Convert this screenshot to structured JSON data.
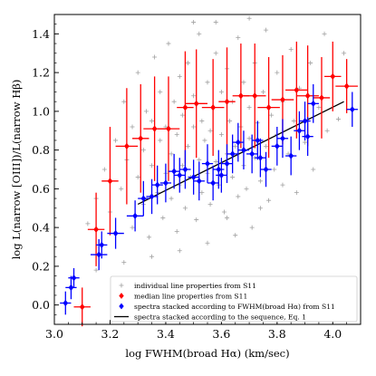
{
  "chart_data": {
    "type": "scatter",
    "xlabel": "log FWHM(broad Hα) (km/sec)",
    "ylabel": "log L(narrow [OIII])/L(narrow Hβ)",
    "xlim": [
      3.0,
      4.1
    ],
    "ylim": [
      -0.1,
      1.5
    ],
    "xticks": [
      "3.0",
      "3.2",
      "3.4",
      "3.6",
      "3.8",
      "4.0"
    ],
    "yticks": [
      "0.0",
      "0.2",
      "0.4",
      "0.6",
      "0.8",
      "1.0",
      "1.2",
      "1.4"
    ],
    "grid": false,
    "legend_position": "bottom-right",
    "series": [
      {
        "name": "individual line properties from S11",
        "marker": "plus",
        "color": "#a0a0a0",
        "description_only": false,
        "points": [
          [
            3.12,
            0.42
          ],
          [
            3.15,
            0.55
          ],
          [
            3.18,
            0.7
          ],
          [
            3.2,
            0.48
          ],
          [
            3.22,
            0.85
          ],
          [
            3.24,
            0.6
          ],
          [
            3.25,
            1.05
          ],
          [
            3.26,
            0.75
          ],
          [
            3.28,
            0.4
          ],
          [
            3.28,
            0.92
          ],
          [
            3.3,
            0.66
          ],
          [
            3.3,
            1.2
          ],
          [
            3.32,
            0.52
          ],
          [
            3.32,
            0.8
          ],
          [
            3.33,
            1.0
          ],
          [
            3.34,
            0.35
          ],
          [
            3.35,
            0.72
          ],
          [
            3.35,
            0.95
          ],
          [
            3.36,
            1.28
          ],
          [
            3.37,
            0.58
          ],
          [
            3.38,
            0.85
          ],
          [
            3.38,
            1.1
          ],
          [
            3.39,
            0.45
          ],
          [
            3.4,
            0.68
          ],
          [
            3.4,
            0.92
          ],
          [
            3.41,
            1.35
          ],
          [
            3.42,
            0.55
          ],
          [
            3.42,
            0.78
          ],
          [
            3.43,
            1.05
          ],
          [
            3.44,
            0.38
          ],
          [
            3.44,
            0.88
          ],
          [
            3.45,
            0.62
          ],
          [
            3.45,
            1.18
          ],
          [
            3.46,
            0.72
          ],
          [
            3.46,
            0.98
          ],
          [
            3.47,
            0.5
          ],
          [
            3.48,
            0.82
          ],
          [
            3.48,
            1.25
          ],
          [
            3.49,
            0.66
          ],
          [
            3.5,
            0.92
          ],
          [
            3.5,
            1.08
          ],
          [
            3.51,
            0.44
          ],
          [
            3.52,
            0.75
          ],
          [
            3.52,
            1.4
          ],
          [
            3.53,
            0.58
          ],
          [
            3.53,
            0.95
          ],
          [
            3.54,
            0.85
          ],
          [
            3.55,
            0.68
          ],
          [
            3.55,
            1.15
          ],
          [
            3.56,
            0.52
          ],
          [
            3.56,
            0.9
          ],
          [
            3.57,
            1.02
          ],
          [
            3.58,
            0.74
          ],
          [
            3.58,
            1.3
          ],
          [
            3.59,
            0.62
          ],
          [
            3.6,
            0.88
          ],
          [
            3.6,
            1.1
          ],
          [
            3.61,
            0.48
          ],
          [
            3.62,
            0.78
          ],
          [
            3.62,
            1.22
          ],
          [
            3.63,
            0.95
          ],
          [
            3.64,
            0.66
          ],
          [
            3.64,
            1.05
          ],
          [
            3.65,
            0.82
          ],
          [
            3.66,
            0.56
          ],
          [
            3.66,
            1.38
          ],
          [
            3.67,
            0.92
          ],
          [
            3.68,
            0.72
          ],
          [
            3.68,
            1.15
          ],
          [
            3.69,
            0.6
          ],
          [
            3.7,
            0.86
          ],
          [
            3.7,
            1.02
          ],
          [
            3.71,
            0.4
          ],
          [
            3.72,
            0.76
          ],
          [
            3.72,
            1.25
          ],
          [
            3.73,
            0.94
          ],
          [
            3.74,
            0.64
          ],
          [
            3.75,
            1.1
          ],
          [
            3.76,
            0.82
          ],
          [
            3.76,
            1.42
          ],
          [
            3.77,
            0.54
          ],
          [
            3.78,
            0.98
          ],
          [
            3.79,
            0.7
          ],
          [
            3.8,
            1.2
          ],
          [
            3.8,
            0.88
          ],
          [
            3.82,
            0.62
          ],
          [
            3.82,
            1.05
          ],
          [
            3.84,
            0.78
          ],
          [
            3.85,
            1.32
          ],
          [
            3.86,
            0.95
          ],
          [
            3.87,
            0.58
          ],
          [
            3.88,
            1.12
          ],
          [
            3.9,
            0.84
          ],
          [
            3.92,
            1.25
          ],
          [
            3.93,
            0.7
          ],
          [
            3.95,
            1.02
          ],
          [
            3.97,
            1.4
          ],
          [
            3.98,
            0.9
          ],
          [
            4.0,
            1.18
          ],
          [
            4.02,
            0.96
          ],
          [
            4.04,
            1.3
          ],
          [
            3.58,
            1.46
          ],
          [
            3.7,
            1.48
          ],
          [
            3.5,
            1.46
          ],
          [
            3.35,
            0.25
          ],
          [
            3.45,
            0.28
          ],
          [
            3.55,
            0.32
          ],
          [
            3.65,
            0.36
          ],
          [
            3.25,
            0.22
          ],
          [
            3.15,
            0.18
          ],
          [
            3.62,
            0.45
          ],
          [
            3.74,
            0.5
          ]
        ]
      },
      {
        "name": "median line properties from S11",
        "marker": "diamond",
        "color": "#ff0000",
        "points": [
          {
            "x": 3.1,
            "y": -0.01,
            "xerr": 0.03,
            "yerr_lo": 0.1,
            "yerr_hi": 0.1
          },
          {
            "x": 3.15,
            "y": 0.39,
            "xerr": 0.03,
            "yerr_lo": 0.19,
            "yerr_hi": 0.19
          },
          {
            "x": 3.2,
            "y": 0.64,
            "xerr": 0.03,
            "yerr_lo": 0.28,
            "yerr_hi": 0.28
          },
          {
            "x": 3.26,
            "y": 0.82,
            "xerr": 0.04,
            "yerr_lo": 0.3,
            "yerr_hi": 0.3
          },
          {
            "x": 3.31,
            "y": 0.86,
            "xerr": 0.03,
            "yerr_lo": 0.28,
            "yerr_hi": 0.28
          },
          {
            "x": 3.36,
            "y": 0.91,
            "xerr": 0.04,
            "yerr_lo": 0.27,
            "yerr_hi": 0.27
          },
          {
            "x": 3.41,
            "y": 0.91,
            "xerr": 0.04,
            "yerr_lo": 0.27,
            "yerr_hi": 0.27
          },
          {
            "x": 3.47,
            "y": 1.02,
            "xerr": 0.03,
            "yerr_lo": 0.29,
            "yerr_hi": 0.29
          },
          {
            "x": 3.51,
            "y": 1.04,
            "xerr": 0.04,
            "yerr_lo": 0.28,
            "yerr_hi": 0.28
          },
          {
            "x": 3.57,
            "y": 1.02,
            "xerr": 0.04,
            "yerr_lo": 0.25,
            "yerr_hi": 0.25
          },
          {
            "x": 3.62,
            "y": 1.05,
            "xerr": 0.03,
            "yerr_lo": 0.28,
            "yerr_hi": 0.28
          },
          {
            "x": 3.67,
            "y": 1.08,
            "xerr": 0.03,
            "yerr_lo": 0.27,
            "yerr_hi": 0.27
          },
          {
            "x": 3.72,
            "y": 1.08,
            "xerr": 0.04,
            "yerr_lo": 0.27,
            "yerr_hi": 0.27
          },
          {
            "x": 3.77,
            "y": 1.02,
            "xerr": 0.04,
            "yerr_lo": 0.26,
            "yerr_hi": 0.26
          },
          {
            "x": 3.82,
            "y": 1.06,
            "xerr": 0.04,
            "yerr_lo": 0.23,
            "yerr_hi": 0.23
          },
          {
            "x": 3.87,
            "y": 1.11,
            "xerr": 0.04,
            "yerr_lo": 0.25,
            "yerr_hi": 0.25
          },
          {
            "x": 3.91,
            "y": 1.08,
            "xerr": 0.04,
            "yerr_lo": 0.26,
            "yerr_hi": 0.26
          },
          {
            "x": 3.96,
            "y": 1.07,
            "xerr": 0.03,
            "yerr_lo": 0.21,
            "yerr_hi": 0.21
          },
          {
            "x": 4.0,
            "y": 1.18,
            "xerr": 0.03,
            "yerr_lo": 0.18,
            "yerr_hi": 0.18
          },
          {
            "x": 4.05,
            "y": 1.13,
            "xerr": 0.04,
            "yerr_lo": 0.14,
            "yerr_hi": 0.14
          }
        ]
      },
      {
        "name": "spectra stacked according to FWHM(broad Hα) from S11",
        "marker": "diamond",
        "color": "#0000ff",
        "points": [
          {
            "x": 3.04,
            "y": 0.01,
            "xerr": 0.02,
            "yerr_lo": 0.06,
            "yerr_hi": 0.06
          },
          {
            "x": 3.06,
            "y": 0.09,
            "xerr": 0.02,
            "yerr_lo": 0.06,
            "yerr_hi": 0.06
          },
          {
            "x": 3.07,
            "y": 0.14,
            "xerr": 0.02,
            "yerr_lo": 0.05,
            "yerr_hi": 0.05
          },
          {
            "x": 3.16,
            "y": 0.26,
            "xerr": 0.03,
            "yerr_lo": 0.08,
            "yerr_hi": 0.08
          },
          {
            "x": 3.17,
            "y": 0.31,
            "xerr": 0.02,
            "yerr_lo": 0.07,
            "yerr_hi": 0.07
          },
          {
            "x": 3.22,
            "y": 0.37,
            "xerr": 0.03,
            "yerr_lo": 0.08,
            "yerr_hi": 0.08
          },
          {
            "x": 3.29,
            "y": 0.46,
            "xerr": 0.03,
            "yerr_lo": 0.08,
            "yerr_hi": 0.08
          },
          {
            "x": 3.32,
            "y": 0.55,
            "xerr": 0.02,
            "yerr_lo": 0.09,
            "yerr_hi": 0.09
          },
          {
            "x": 3.35,
            "y": 0.56,
            "xerr": 0.02,
            "yerr_lo": 0.09,
            "yerr_hi": 0.09
          },
          {
            "x": 3.37,
            "y": 0.62,
            "xerr": 0.02,
            "yerr_lo": 0.1,
            "yerr_hi": 0.1
          },
          {
            "x": 3.4,
            "y": 0.63,
            "xerr": 0.02,
            "yerr_lo": 0.1,
            "yerr_hi": 0.1
          },
          {
            "x": 3.43,
            "y": 0.69,
            "xerr": 0.02,
            "yerr_lo": 0.09,
            "yerr_hi": 0.09
          },
          {
            "x": 3.45,
            "y": 0.67,
            "xerr": 0.02,
            "yerr_lo": 0.09,
            "yerr_hi": 0.09
          },
          {
            "x": 3.47,
            "y": 0.7,
            "xerr": 0.02,
            "yerr_lo": 0.1,
            "yerr_hi": 0.1
          },
          {
            "x": 3.5,
            "y": 0.66,
            "xerr": 0.02,
            "yerr_lo": 0.09,
            "yerr_hi": 0.09
          },
          {
            "x": 3.52,
            "y": 0.64,
            "xerr": 0.02,
            "yerr_lo": 0.1,
            "yerr_hi": 0.1
          },
          {
            "x": 3.55,
            "y": 0.73,
            "xerr": 0.02,
            "yerr_lo": 0.1,
            "yerr_hi": 0.1
          },
          {
            "x": 3.57,
            "y": 0.63,
            "xerr": 0.02,
            "yerr_lo": 0.09,
            "yerr_hi": 0.09
          },
          {
            "x": 3.59,
            "y": 0.7,
            "xerr": 0.02,
            "yerr_lo": 0.1,
            "yerr_hi": 0.1
          },
          {
            "x": 3.6,
            "y": 0.67,
            "xerr": 0.02,
            "yerr_lo": 0.09,
            "yerr_hi": 0.09
          },
          {
            "x": 3.62,
            "y": 0.73,
            "xerr": 0.02,
            "yerr_lo": 0.1,
            "yerr_hi": 0.1
          },
          {
            "x": 3.64,
            "y": 0.78,
            "xerr": 0.02,
            "yerr_lo": 0.1,
            "yerr_hi": 0.1
          },
          {
            "x": 3.66,
            "y": 0.84,
            "xerr": 0.02,
            "yerr_lo": 0.1,
            "yerr_hi": 0.1
          },
          {
            "x": 3.68,
            "y": 0.8,
            "xerr": 0.02,
            "yerr_lo": 0.1,
            "yerr_hi": 0.1
          },
          {
            "x": 3.71,
            "y": 0.78,
            "xerr": 0.02,
            "yerr_lo": 0.1,
            "yerr_hi": 0.1
          },
          {
            "x": 3.73,
            "y": 0.85,
            "xerr": 0.02,
            "yerr_lo": 0.1,
            "yerr_hi": 0.1
          },
          {
            "x": 3.74,
            "y": 0.76,
            "xerr": 0.02,
            "yerr_lo": 0.1,
            "yerr_hi": 0.1
          },
          {
            "x": 3.76,
            "y": 0.7,
            "xerr": 0.02,
            "yerr_lo": 0.09,
            "yerr_hi": 0.09
          },
          {
            "x": 3.8,
            "y": 0.82,
            "xerr": 0.02,
            "yerr_lo": 0.1,
            "yerr_hi": 0.1
          },
          {
            "x": 3.82,
            "y": 0.86,
            "xerr": 0.02,
            "yerr_lo": 0.1,
            "yerr_hi": 0.1
          },
          {
            "x": 3.85,
            "y": 0.77,
            "xerr": 0.02,
            "yerr_lo": 0.1,
            "yerr_hi": 0.1
          },
          {
            "x": 3.88,
            "y": 0.9,
            "xerr": 0.02,
            "yerr_lo": 0.1,
            "yerr_hi": 0.1
          },
          {
            "x": 3.9,
            "y": 0.95,
            "xerr": 0.02,
            "yerr_lo": 0.1,
            "yerr_hi": 0.1
          },
          {
            "x": 3.91,
            "y": 0.87,
            "xerr": 0.02,
            "yerr_lo": 0.1,
            "yerr_hi": 0.1
          },
          {
            "x": 3.93,
            "y": 1.04,
            "xerr": 0.02,
            "yerr_lo": 0.1,
            "yerr_hi": 0.1
          },
          {
            "x": 4.07,
            "y": 1.01,
            "xerr": 0.02,
            "yerr_lo": 0.09,
            "yerr_hi": 0.09
          }
        ]
      },
      {
        "name": "spectra stacked according to the sequence, Eq. 1",
        "marker": "line",
        "color": "#000000",
        "x": [
          3.3,
          4.04
        ],
        "y": [
          0.52,
          1.05
        ]
      }
    ]
  }
}
